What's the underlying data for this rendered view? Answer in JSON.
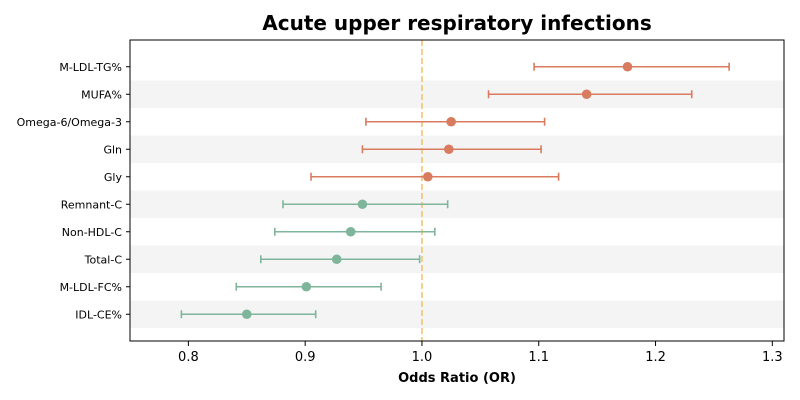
{
  "chart_data": {
    "type": "scatter",
    "title": "Acute upper respiratory infections",
    "xlabel": "Odds Ratio (OR)",
    "ylabel": "",
    "xlim": [
      0.75,
      1.31
    ],
    "xticks": [
      "0.8",
      "0.9",
      "1.0",
      "1.1",
      "1.2",
      "1.3"
    ],
    "reference_line": 1.0,
    "grid": false,
    "colors": {
      "positive": "#d97b5f",
      "negative": "#7fb59a",
      "reference": "#f2c46d",
      "band": "#f4f4f4"
    },
    "points": [
      {
        "label": "M-LDL-TG%",
        "or": 1.176,
        "lower": 1.096,
        "upper": 1.263
      },
      {
        "label": "MUFA%",
        "or": 1.141,
        "lower": 1.057,
        "upper": 1.231
      },
      {
        "label": "Omega-6/Omega-3",
        "or": 1.025,
        "lower": 0.952,
        "upper": 1.105
      },
      {
        "label": "Gln",
        "or": 1.023,
        "lower": 0.949,
        "upper": 1.102
      },
      {
        "label": "Gly",
        "or": 1.005,
        "lower": 0.905,
        "upper": 1.117
      },
      {
        "label": "Remnant-C",
        "or": 0.949,
        "lower": 0.881,
        "upper": 1.022
      },
      {
        "label": "Non-HDL-C",
        "or": 0.939,
        "lower": 0.874,
        "upper": 1.011
      },
      {
        "label": "Total-C",
        "or": 0.927,
        "lower": 0.862,
        "upper": 0.998
      },
      {
        "label": "M-LDL-FC%",
        "or": 0.901,
        "lower": 0.841,
        "upper": 0.965
      },
      {
        "label": "IDL-CE%",
        "or": 0.85,
        "lower": 0.794,
        "upper": 0.909
      }
    ]
  }
}
